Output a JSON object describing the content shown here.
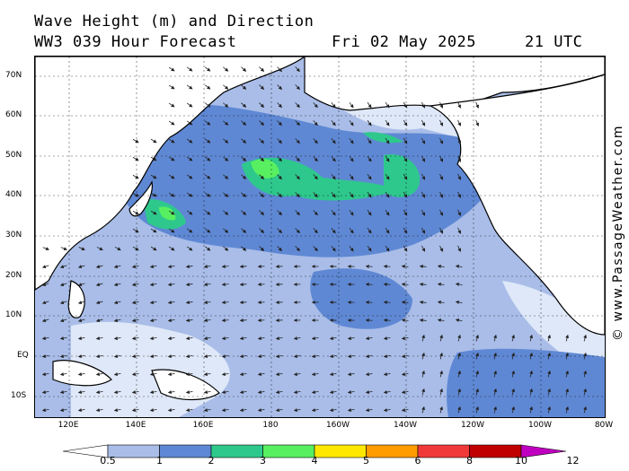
{
  "header": {
    "title": "Wave Height (m) and Direction",
    "model": "WW3 039 Hour Forecast",
    "date": "Fri 02 May 2025",
    "time": "21 UTC"
  },
  "map": {
    "lat_labels": [
      "70N",
      "60N",
      "50N",
      "40N",
      "30N",
      "20N",
      "10N",
      "EQ",
      "10S"
    ],
    "lon_labels": [
      "120E",
      "140E",
      "160E",
      "180",
      "160W",
      "140W",
      "120W",
      "100W",
      "80W"
    ],
    "colors": {
      "ocean_base": "#a9bde8",
      "band_lt1": "#dfe8f8",
      "band_2_3": "#5f88d4",
      "band_3_4": "#2ec88c",
      "band_4_5": "#58f060",
      "land": "#ffffff",
      "coast": "#000000",
      "arrow": "#222222"
    }
  },
  "credit": "© www.PassageWeather.com",
  "legend": {
    "labels": [
      "0.5",
      "1",
      "2",
      "3",
      "4",
      "5",
      "6",
      "8",
      "10",
      "12"
    ],
    "colors": [
      "#dfe8f8",
      "#a9bde8",
      "#5f88d4",
      "#2ec88c",
      "#58f060",
      "#ffe800",
      "#ff9c00",
      "#f03a3a",
      "#c00000",
      "#c000c0"
    ]
  }
}
